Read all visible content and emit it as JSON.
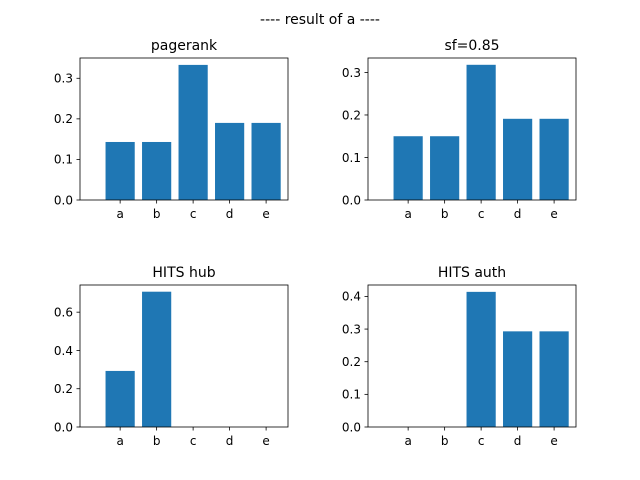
{
  "suptitle": "---- result of a ----",
  "bar_color": "#1f77b4",
  "chart_data": [
    {
      "type": "bar",
      "title": "pagerank",
      "categories": [
        "a",
        "b",
        "c",
        "d",
        "e"
      ],
      "values": [
        0.143,
        0.143,
        0.333,
        0.19,
        0.19
      ],
      "xlabel": "",
      "ylabel": "",
      "ylim": [
        0,
        0.35
      ],
      "yticks": [
        0.0,
        0.1,
        0.2,
        0.3
      ],
      "ytick_labels": [
        "0.0",
        "0.1",
        "0.2",
        "0.3"
      ],
      "grid": false
    },
    {
      "type": "bar",
      "title": "sf=0.85",
      "categories": [
        "a",
        "b",
        "c",
        "d",
        "e"
      ],
      "values": [
        0.15,
        0.15,
        0.318,
        0.191,
        0.191
      ],
      "xlabel": "",
      "ylabel": "",
      "ylim": [
        0,
        0.334
      ],
      "yticks": [
        0.0,
        0.1,
        0.2,
        0.3
      ],
      "ytick_labels": [
        "0.0",
        "0.1",
        "0.2",
        "0.3"
      ],
      "grid": false
    },
    {
      "type": "bar",
      "title": "HITS hub",
      "categories": [
        "a",
        "b",
        "c",
        "d",
        "e"
      ],
      "values": [
        0.293,
        0.707,
        0,
        0,
        0
      ],
      "xlabel": "",
      "ylabel": "",
      "ylim": [
        0,
        0.742
      ],
      "yticks": [
        0.0,
        0.2,
        0.4,
        0.6
      ],
      "ytick_labels": [
        "0.0",
        "0.2",
        "0.4",
        "0.6"
      ],
      "grid": false
    },
    {
      "type": "bar",
      "title": "HITS auth",
      "categories": [
        "a",
        "b",
        "c",
        "d",
        "e"
      ],
      "values": [
        0,
        0,
        0.414,
        0.293,
        0.293
      ],
      "xlabel": "",
      "ylabel": "",
      "ylim": [
        0,
        0.435
      ],
      "yticks": [
        0.0,
        0.1,
        0.2,
        0.3,
        0.4
      ],
      "ytick_labels": [
        "0.0",
        "0.1",
        "0.2",
        "0.3",
        "0.4"
      ],
      "grid": false
    }
  ]
}
